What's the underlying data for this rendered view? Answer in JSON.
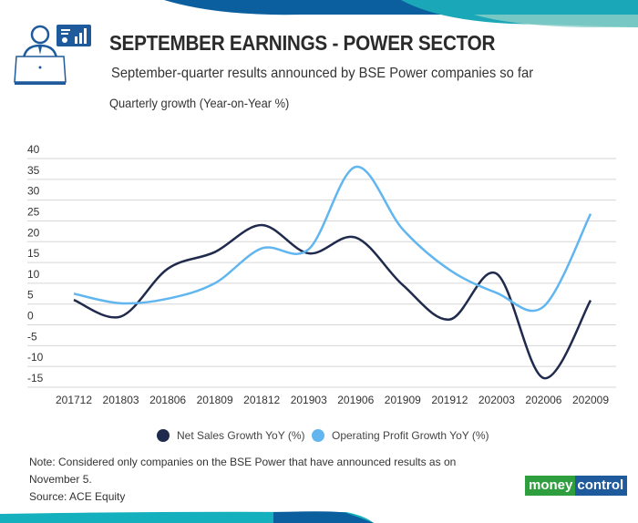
{
  "header": {
    "title": "SEPTEMBER EARNINGS - POWER SECTOR",
    "subtitle": "September-quarter results announced by BSE Power companies so far",
    "icon": "analyst-laptop-dashboard-icon"
  },
  "chart_data": {
    "type": "line",
    "title": "SEPTEMBER EARNINGS - POWER SECTOR",
    "subtitle": "September-quarter results announced by BSE Power companies so far",
    "ylabel": "Quarterly growth (Year-on-Year %)",
    "xlabel": "",
    "categories": [
      "201712",
      "201803",
      "201806",
      "201809",
      "201812",
      "201903",
      "201906",
      "201909",
      "201912",
      "202003",
      "202006",
      "202009"
    ],
    "yticks": [
      40,
      35,
      30,
      25,
      20,
      15,
      10,
      5,
      0,
      -5,
      -10,
      -15
    ],
    "ylim": [
      -15,
      40
    ],
    "grid": true,
    "smooth": true,
    "legend_position": "bottom",
    "series": [
      {
        "name": "Net Sales Growth YoY (%)",
        "color": "#1f2a4d",
        "values": [
          6,
          2,
          13.5,
          17.5,
          24,
          17.2,
          21,
          9.6,
          1.3,
          12.3,
          -12.8,
          5.9
        ]
      },
      {
        "name": "Operating Profit Growth YoY (%)",
        "color": "#62b6ef",
        "values": [
          7.5,
          5.2,
          6.3,
          10,
          18.4,
          18.2,
          38,
          23,
          13.2,
          7.7,
          4.4,
          26.7
        ]
      }
    ]
  },
  "footer": {
    "note_line1": "Note: Considered only companies on the BSE Power that have announced results as on",
    "note_line2": "November 5.",
    "source": "Source: ACE Equity",
    "logo_text_a": "money",
    "logo_text_b": "control"
  },
  "colors": {
    "accent_dark": "#0b5f9e",
    "accent_teal": "#15b0bd",
    "grid": "#d6d6d6"
  }
}
